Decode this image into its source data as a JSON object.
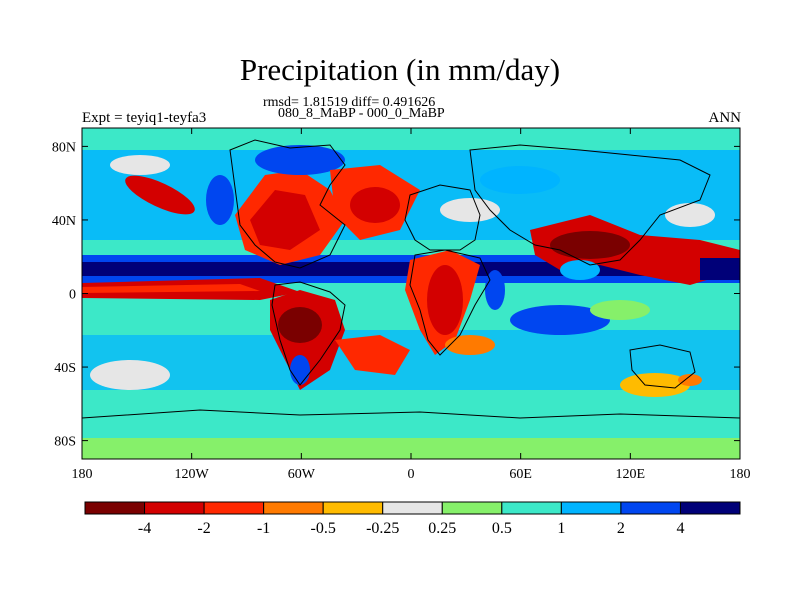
{
  "header": {
    "title": "Precipitation (in mm/day)",
    "stats": "rmsd= 1.81519  diff= 0.491626",
    "subtitle": "080_8_MaBP - 000_0_MaBP",
    "left_label": "Expt = teyiq1-teyfa3",
    "right_label": "ANN"
  },
  "map": {
    "lon_range": [
      -180,
      180
    ],
    "lat_range": [
      -90,
      90
    ],
    "x_ticks": [
      {
        "lon": -180,
        "label": "180"
      },
      {
        "lon": -120,
        "label": "120W"
      },
      {
        "lon": -60,
        "label": "60W"
      },
      {
        "lon": 0,
        "label": "0"
      },
      {
        "lon": 60,
        "label": "60E"
      },
      {
        "lon": 120,
        "label": "120E"
      },
      {
        "lon": 180,
        "label": "180"
      }
    ],
    "y_ticks": [
      {
        "lat": 80,
        "label": "80N"
      },
      {
        "lat": 40,
        "label": "40N"
      },
      {
        "lat": 0,
        "label": "0"
      },
      {
        "lat": -40,
        "label": "40S"
      },
      {
        "lat": -80,
        "label": "80S"
      }
    ]
  },
  "colorbar": {
    "colors": [
      "#7a0000",
      "#d30000",
      "#ff2800",
      "#ff7a00",
      "#ffbb00",
      "#e6e6e6",
      "#86f06a",
      "#3ce8c8",
      "#00b4ff",
      "#0046f0",
      "#000078"
    ],
    "labels": [
      "-4",
      "-2",
      "-1",
      "-0.5",
      "-0.25",
      "0.25",
      "0.5",
      "1",
      "2",
      "4"
    ]
  }
}
